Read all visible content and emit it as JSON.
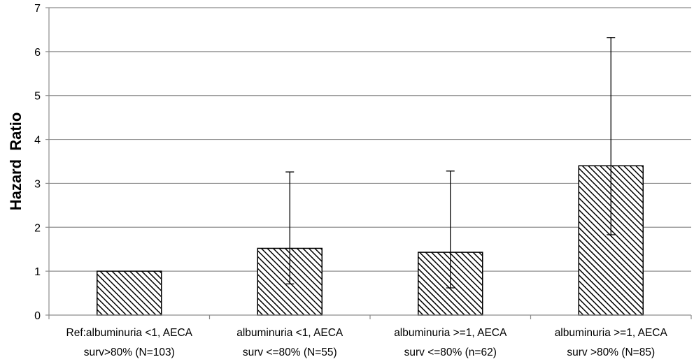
{
  "chart_data": {
    "type": "bar",
    "title": "",
    "xlabel": "",
    "ylabel": "Hazard  Ratio",
    "ylim": [
      0,
      7
    ],
    "yticks": [
      0,
      1,
      2,
      3,
      4,
      5,
      6,
      7
    ],
    "grid": true,
    "legend": "none",
    "categories": [
      [
        "Ref:albuminuria <1, AECA",
        "surv>80% (N=103)"
      ],
      [
        "albuminuria <1, AECA",
        "surv <=80% (N=55)"
      ],
      [
        "albuminuria >=1, AECA",
        "surv <=80% (n=62)"
      ],
      [
        "albuminuria >=1, AECA",
        "surv >80% (N=85)"
      ]
    ],
    "values": [
      1.0,
      1.52,
      1.43,
      3.4
    ],
    "error_low": [
      null,
      0.71,
      0.62,
      1.83
    ],
    "error_high": [
      null,
      3.26,
      3.28,
      6.32
    ],
    "colors": {
      "bar_fill": "#ffffff",
      "bar_hatch": "#000000",
      "grid": "#8c8c8c"
    }
  }
}
